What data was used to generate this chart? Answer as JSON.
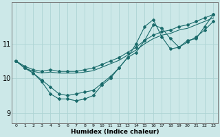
{
  "title": "",
  "xlabel": "Humidex (Indice chaleur)",
  "ylabel": "",
  "bg_color": "#cce8e8",
  "line_color": "#1a6b6b",
  "grid_color": "#aed4d4",
  "x_ticks": [
    0,
    1,
    2,
    3,
    4,
    5,
    6,
    7,
    8,
    9,
    10,
    11,
    12,
    13,
    14,
    15,
    16,
    17,
    18,
    19,
    20,
    21,
    22,
    23
  ],
  "y_ticks": [
    9,
    10,
    11
  ],
  "ylim": [
    8.7,
    12.2
  ],
  "xlim": [
    -0.5,
    23.5
  ],
  "lines": [
    {
      "x": [
        0,
        1,
        2,
        3,
        4,
        5,
        6,
        7,
        8,
        9,
        10,
        11,
        12,
        13,
        14,
        15,
        16,
        17,
        18,
        19,
        20,
        21,
        22,
        23
      ],
      "y": [
        10.5,
        10.35,
        10.25,
        10.2,
        10.25,
        10.2,
        10.2,
        10.2,
        10.25,
        10.3,
        10.4,
        10.5,
        10.6,
        10.75,
        10.9,
        11.1,
        11.25,
        11.35,
        11.4,
        11.5,
        11.55,
        11.65,
        11.75,
        11.85
      ],
      "has_markers": true
    },
    {
      "x": [
        0,
        1,
        2,
        3,
        4,
        5,
        6,
        7,
        8,
        9,
        10,
        11,
        12,
        13,
        14,
        15,
        16,
        17,
        18,
        19,
        20,
        21,
        22,
        23
      ],
      "y": [
        10.5,
        10.3,
        10.2,
        10.15,
        10.18,
        10.15,
        10.15,
        10.15,
        10.18,
        10.22,
        10.32,
        10.42,
        10.52,
        10.67,
        10.82,
        11.0,
        11.15,
        11.25,
        11.3,
        11.4,
        11.45,
        11.55,
        11.65,
        11.75
      ],
      "has_markers": false
    },
    {
      "x": [
        0,
        1,
        2,
        3,
        4,
        5,
        6,
        7,
        8,
        9,
        10,
        11,
        12,
        13,
        14,
        15,
        16,
        17,
        18,
        19,
        20,
        21,
        22,
        23
      ],
      "y": [
        10.5,
        10.3,
        10.15,
        9.9,
        9.55,
        9.4,
        9.4,
        9.35,
        9.4,
        9.5,
        9.8,
        10.0,
        10.3,
        10.6,
        11.0,
        11.5,
        11.7,
        11.2,
        10.85,
        10.9,
        11.1,
        11.15,
        11.5,
        11.85
      ],
      "has_markers": true
    },
    {
      "x": [
        0,
        1,
        2,
        3,
        4,
        5,
        6,
        7,
        8,
        9,
        10,
        11,
        12,
        13,
        14,
        15,
        16,
        17,
        18,
        19,
        20,
        21,
        22,
        23
      ],
      "y": [
        10.5,
        10.3,
        10.15,
        9.95,
        9.75,
        9.55,
        9.5,
        9.55,
        9.6,
        9.65,
        9.85,
        10.05,
        10.3,
        10.6,
        10.75,
        11.1,
        11.55,
        11.45,
        11.15,
        10.9,
        11.05,
        11.2,
        11.4,
        11.65
      ],
      "has_markers": true
    }
  ]
}
